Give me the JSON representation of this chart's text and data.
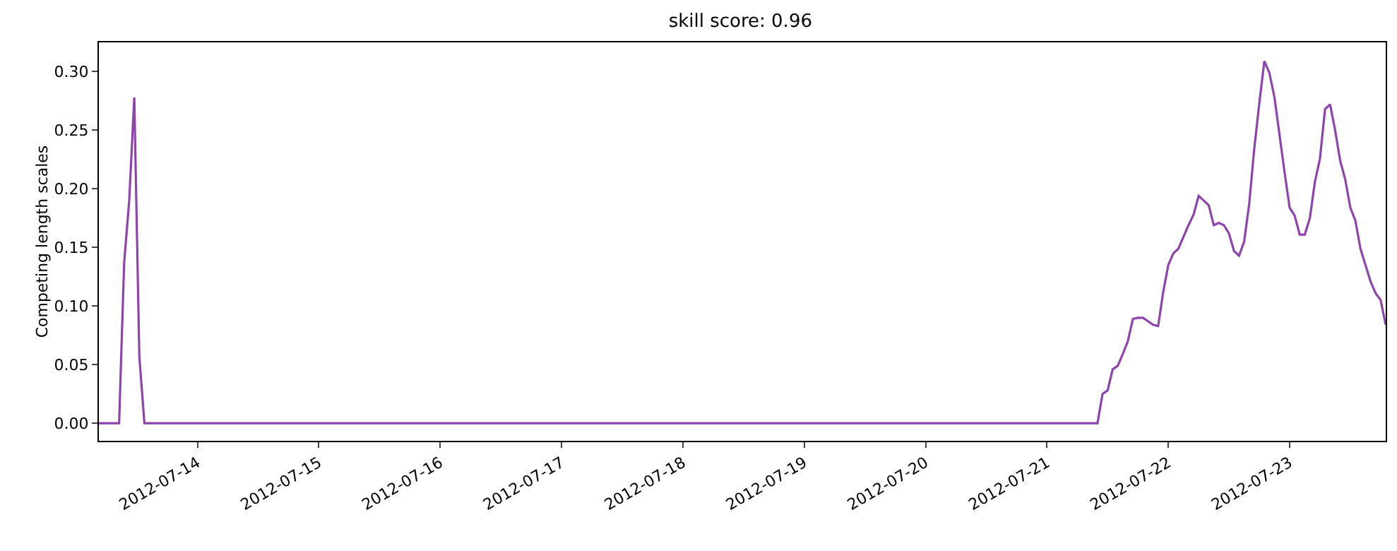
{
  "chart_data": {
    "type": "line",
    "title": "skill score: 0.96",
    "ylabel": "Competing length scales",
    "x": [
      "2012-07-13T04:30",
      "2012-07-13T08:30",
      "2012-07-13T09:30",
      "2012-07-13T10:30",
      "2012-07-13T11:30",
      "2012-07-13T12:30",
      "2012-07-13T13:30",
      "2012-07-21T10:00",
      "2012-07-21T11:00",
      "2012-07-21T12:00",
      "2012-07-21T13:00",
      "2012-07-21T14:00",
      "2012-07-21T15:00",
      "2012-07-21T16:00",
      "2012-07-21T17:00",
      "2012-07-21T18:00",
      "2012-07-21T19:00",
      "2012-07-21T20:00",
      "2012-07-21T21:00",
      "2012-07-21T22:00",
      "2012-07-21T23:00",
      "2012-07-22T00:00",
      "2012-07-22T01:00",
      "2012-07-22T02:00",
      "2012-07-22T03:00",
      "2012-07-22T04:00",
      "2012-07-22T05:00",
      "2012-07-22T06:00",
      "2012-07-22T07:00",
      "2012-07-22T08:00",
      "2012-07-22T09:00",
      "2012-07-22T10:00",
      "2012-07-22T11:00",
      "2012-07-22T12:00",
      "2012-07-22T13:00",
      "2012-07-22T14:00",
      "2012-07-22T15:00",
      "2012-07-22T16:00",
      "2012-07-22T17:00",
      "2012-07-22T18:00",
      "2012-07-22T19:00",
      "2012-07-22T20:00",
      "2012-07-22T21:00",
      "2012-07-22T22:00",
      "2012-07-22T23:00",
      "2012-07-23T00:00",
      "2012-07-23T01:00",
      "2012-07-23T02:00",
      "2012-07-23T03:00",
      "2012-07-23T04:00",
      "2012-07-23T05:00",
      "2012-07-23T06:00",
      "2012-07-23T07:00",
      "2012-07-23T08:00",
      "2012-07-23T09:00",
      "2012-07-23T10:00",
      "2012-07-23T11:00",
      "2012-07-23T12:00",
      "2012-07-23T13:00",
      "2012-07-23T14:00",
      "2012-07-23T15:00",
      "2012-07-23T16:00",
      "2012-07-23T17:00",
      "2012-07-23T18:00",
      "2012-07-23T19:00"
    ],
    "series": [
      {
        "color": "#8e44ad",
        "values": [
          0,
          0,
          0.137,
          0.19,
          0.278,
          0.057,
          0,
          0,
          0.025,
          0.028,
          0.046,
          0.049,
          0.059,
          0.07,
          0.089,
          0.09,
          0.09,
          0.087,
          0.084,
          0.083,
          0.112,
          0.135,
          0.145,
          0.149,
          0.159,
          0.169,
          0.178,
          0.194,
          0.19,
          0.186,
          0.169,
          0.171,
          0.169,
          0.162,
          0.147,
          0.143,
          0.155,
          0.187,
          0.234,
          0.273,
          0.309,
          0.299,
          0.278,
          0.246,
          0.214,
          0.184,
          0.177,
          0.161,
          0.161,
          0.175,
          0.206,
          0.226,
          0.268,
          0.272,
          0.25,
          0.224,
          0.208,
          0.184,
          0.173,
          0.149,
          0.135,
          0.121,
          0.111,
          0.105,
          0.084
        ]
      }
    ],
    "xlim": [
      "2012-07-13T04:30",
      "2012-07-23T19:00"
    ],
    "xticks": [
      "2012-07-14",
      "2012-07-15",
      "2012-07-16",
      "2012-07-17",
      "2012-07-18",
      "2012-07-19",
      "2012-07-20",
      "2012-07-21",
      "2012-07-22",
      "2012-07-23"
    ],
    "ylim": [
      -0.015,
      0.325
    ],
    "yticks": [
      {
        "value": 0,
        "label": "0.00"
      },
      {
        "value": 0.05,
        "label": "0.05"
      },
      {
        "value": 0.1,
        "label": "0.10"
      },
      {
        "value": 0.15,
        "label": "0.15"
      },
      {
        "value": 0.2,
        "label": "0.20"
      },
      {
        "value": 0.25,
        "label": "0.25"
      },
      {
        "value": 0.3,
        "label": "0.30"
      }
    ],
    "grid": false,
    "marker": "none",
    "line_style": "solid"
  }
}
